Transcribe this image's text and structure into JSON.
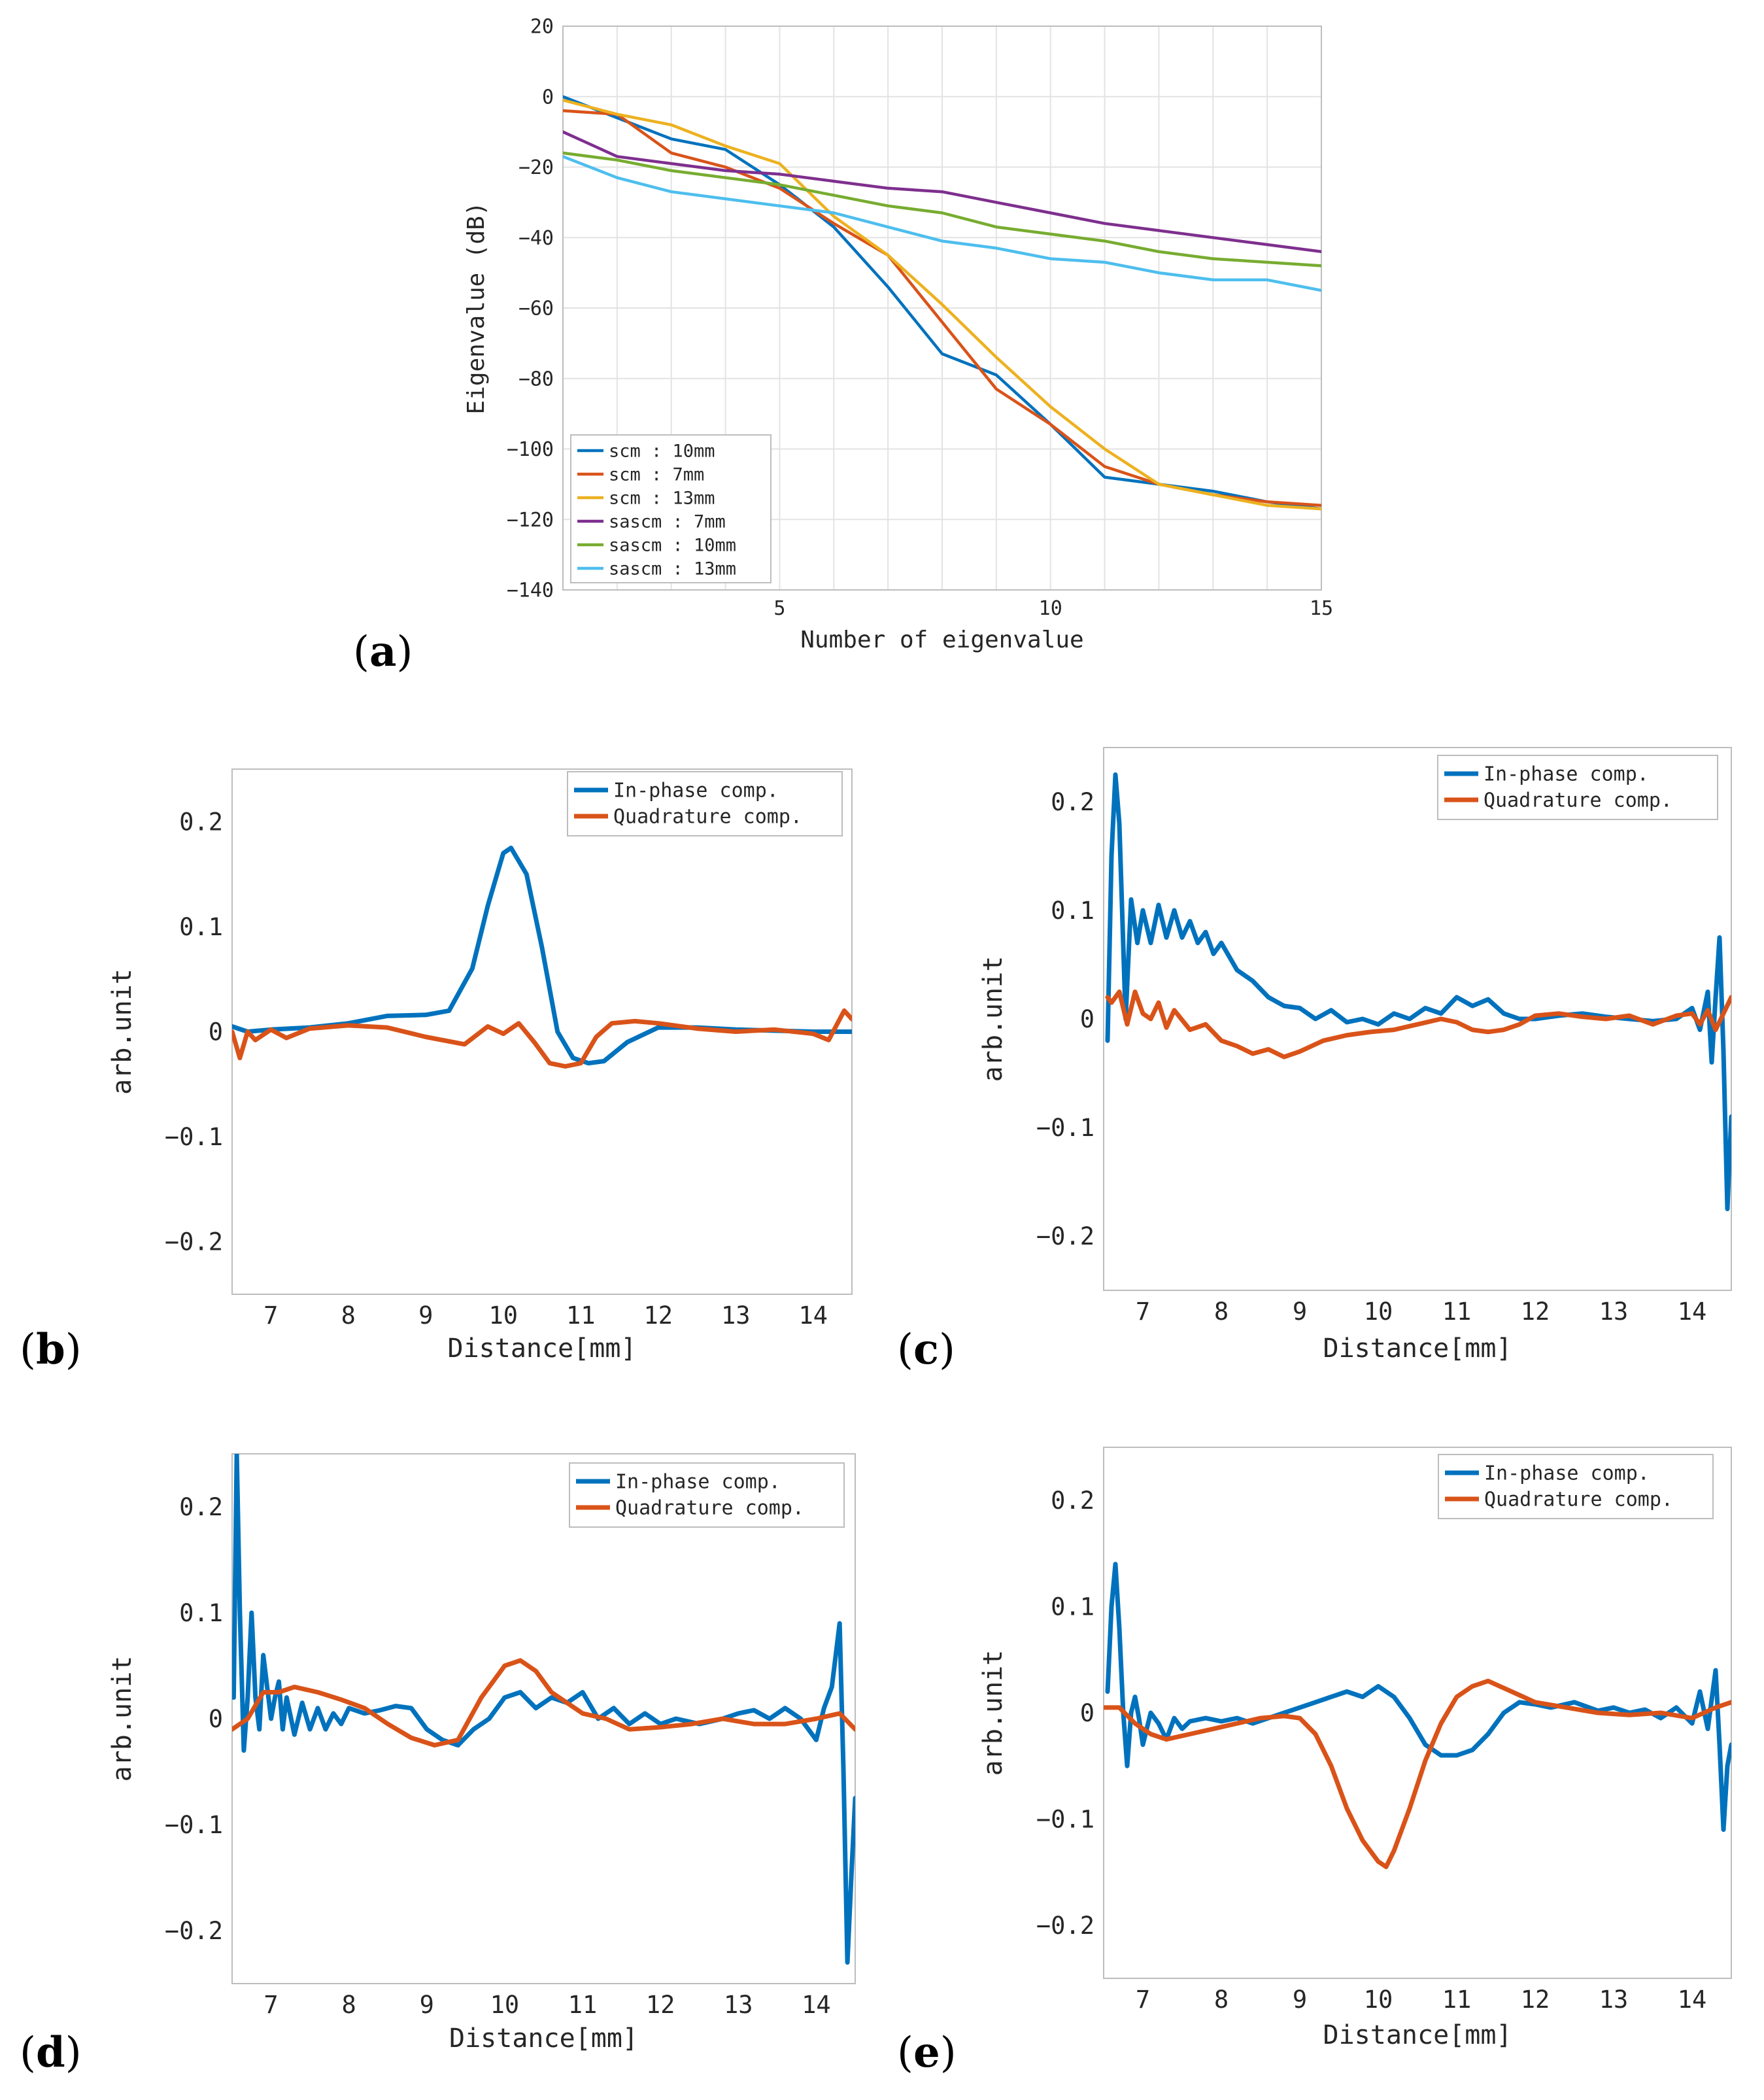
{
  "chart_data": [
    {
      "panel": "a",
      "type": "line",
      "title": "",
      "xlabel": "Number of eigenvalue",
      "ylabel": "Eigenvalue (dB)",
      "xlim": [
        1,
        15
      ],
      "ylim": [
        -140,
        20
      ],
      "xticks": [
        5,
        10,
        15
      ],
      "yticks": [
        20,
        0,
        -20,
        -40,
        -60,
        -80,
        -100,
        -120,
        -140
      ],
      "grid": true,
      "legend_location": "bottom-left",
      "x": [
        1,
        2,
        3,
        4,
        5,
        6,
        7,
        8,
        9,
        10,
        11,
        12,
        13,
        14,
        15
      ],
      "series": [
        {
          "name": "scm : 10mm",
          "color": "#0072BD",
          "values": [
            0,
            -6,
            -12,
            -15,
            -25,
            -37,
            -54,
            -73,
            -79,
            -93,
            -108,
            -110,
            -112,
            -115,
            -117
          ]
        },
        {
          "name": "scm : 7mm",
          "color": "#D95319",
          "values": [
            -4,
            -5,
            -16,
            -20,
            -26,
            -36,
            -45,
            -64,
            -83,
            -93,
            -105,
            -110,
            -113,
            -115,
            -116
          ]
        },
        {
          "name": "scm : 13mm",
          "color": "#EDB120",
          "values": [
            -1,
            -5,
            -8,
            -14,
            -19,
            -34,
            -45,
            -59,
            -74,
            -88,
            -100,
            -110,
            -113,
            -116,
            -117
          ]
        },
        {
          "name": "sascm : 7mm",
          "color": "#7E2F8E",
          "values": [
            -10,
            -17,
            -19,
            -21,
            -22,
            -24,
            -26,
            -27,
            -30,
            -33,
            -36,
            -38,
            -40,
            -42,
            -44
          ]
        },
        {
          "name": "sascm : 10mm",
          "color": "#77AC30",
          "values": [
            -16,
            -18,
            -21,
            -23,
            -25,
            -28,
            -31,
            -33,
            -37,
            -39,
            -41,
            -44,
            -46,
            -47,
            -48
          ]
        },
        {
          "name": "sascm : 13mm",
          "color": "#4DBEEE",
          "values": [
            -17,
            -23,
            -27,
            -29,
            -31,
            -33,
            -37,
            -41,
            -43,
            -46,
            -47,
            -50,
            -52,
            -52,
            -55
          ]
        }
      ]
    },
    {
      "panel": "b",
      "type": "line",
      "xlabel": "Distance[mm]",
      "ylabel": "arb.unit",
      "xlim": [
        6.5,
        14.5
      ],
      "ylim": [
        -0.25,
        0.25
      ],
      "xticks": [
        7,
        8,
        9,
        10,
        11,
        12,
        13,
        14
      ],
      "yticks": [
        0.2,
        0.1,
        0,
        -0.1,
        -0.2
      ],
      "ytick_labels": [
        "0.2",
        "0.1",
        "0",
        "-0.1",
        "-0.2"
      ],
      "legend_location": "top-right",
      "series": [
        {
          "name": "In-phase comp.",
          "color": "#0072BD",
          "x": [
            6.5,
            6.7,
            7.0,
            7.5,
            8.0,
            8.5,
            9.0,
            9.3,
            9.6,
            9.8,
            10.0,
            10.1,
            10.3,
            10.5,
            10.7,
            10.9,
            11.1,
            11.3,
            11.6,
            12.0,
            12.5,
            13.0,
            13.5,
            14.0,
            14.5
          ],
          "values": [
            0.005,
            0.0,
            0.002,
            0.004,
            0.008,
            0.015,
            0.016,
            0.02,
            0.06,
            0.12,
            0.17,
            0.175,
            0.15,
            0.08,
            0.0,
            -0.025,
            -0.03,
            -0.028,
            -0.01,
            0.004,
            0.004,
            0.002,
            0.001,
            0.0,
            0.0
          ]
        },
        {
          "name": "Quadrature comp.",
          "color": "#D95319",
          "x": [
            6.5,
            6.6,
            6.7,
            6.8,
            7.0,
            7.2,
            7.5,
            8.0,
            8.5,
            9.0,
            9.5,
            9.8,
            10.0,
            10.2,
            10.4,
            10.6,
            10.8,
            11.0,
            11.2,
            11.4,
            11.7,
            12.0,
            12.5,
            13.0,
            13.5,
            14.0,
            14.2,
            14.4,
            14.5
          ],
          "values": [
            0.0,
            -0.025,
            0.0,
            -0.008,
            0.002,
            -0.006,
            0.003,
            0.006,
            0.004,
            -0.005,
            -0.012,
            0.005,
            -0.002,
            0.008,
            -0.01,
            -0.03,
            -0.033,
            -0.03,
            -0.005,
            0.008,
            0.01,
            0.008,
            0.003,
            0.0,
            0.002,
            -0.002,
            -0.008,
            0.02,
            0.012
          ]
        }
      ]
    },
    {
      "panel": "c",
      "type": "line",
      "xlabel": "Distance[mm]",
      "ylabel": "arb.unit",
      "xlim": [
        6.5,
        14.5
      ],
      "ylim": [
        -0.25,
        0.25
      ],
      "xticks": [
        7,
        8,
        9,
        10,
        11,
        12,
        13,
        14
      ],
      "yticks": [
        0.2,
        0.1,
        0,
        -0.1,
        -0.2
      ],
      "ytick_labels": [
        "0.2",
        "0.1",
        "0",
        "-0.1",
        "-0.2"
      ],
      "legend_location": "top-right",
      "series": [
        {
          "name": "In-phase comp.",
          "color": "#0072BD",
          "x": [
            6.55,
            6.6,
            6.65,
            6.7,
            6.78,
            6.85,
            6.93,
            7.0,
            7.1,
            7.2,
            7.3,
            7.4,
            7.5,
            7.6,
            7.7,
            7.8,
            7.9,
            8.0,
            8.2,
            8.4,
            8.6,
            8.8,
            9.0,
            9.2,
            9.4,
            9.6,
            9.8,
            10.0,
            10.2,
            10.4,
            10.6,
            10.8,
            11.0,
            11.2,
            11.4,
            11.6,
            11.8,
            12.0,
            12.3,
            12.6,
            12.9,
            13.2,
            13.5,
            13.8,
            14.0,
            14.1,
            14.2,
            14.25,
            14.3,
            14.35,
            14.4,
            14.45,
            14.5
          ],
          "values": [
            -0.02,
            0.15,
            0.225,
            0.18,
            0.0,
            0.11,
            0.07,
            0.1,
            0.07,
            0.105,
            0.075,
            0.1,
            0.075,
            0.09,
            0.07,
            0.08,
            0.06,
            0.07,
            0.045,
            0.035,
            0.02,
            0.012,
            0.01,
            0.0,
            0.008,
            -0.003,
            0.0,
            -0.005,
            0.005,
            0.0,
            0.01,
            0.005,
            0.02,
            0.012,
            0.018,
            0.005,
            0.0,
            0.0,
            0.003,
            0.005,
            0.002,
            0.0,
            -0.002,
            0.0,
            0.01,
            -0.01,
            0.025,
            -0.04,
            0.02,
            0.075,
            -0.03,
            -0.175,
            -0.09
          ]
        },
        {
          "name": "Quadrature comp.",
          "color": "#D95319",
          "x": [
            6.55,
            6.6,
            6.7,
            6.8,
            6.9,
            7.0,
            7.1,
            7.2,
            7.3,
            7.4,
            7.6,
            7.8,
            8.0,
            8.2,
            8.4,
            8.6,
            8.8,
            9.0,
            9.3,
            9.6,
            9.9,
            10.2,
            10.5,
            10.8,
            11.0,
            11.2,
            11.4,
            11.6,
            11.8,
            12.0,
            12.3,
            12.6,
            12.9,
            13.2,
            13.5,
            13.8,
            14.0,
            14.1,
            14.2,
            14.3,
            14.4,
            14.5
          ],
          "values": [
            0.02,
            0.015,
            0.025,
            -0.005,
            0.025,
            0.005,
            0.0,
            0.015,
            -0.008,
            0.008,
            -0.01,
            -0.005,
            -0.02,
            -0.025,
            -0.032,
            -0.028,
            -0.035,
            -0.03,
            -0.02,
            -0.015,
            -0.012,
            -0.01,
            -0.005,
            0.0,
            -0.003,
            -0.01,
            -0.012,
            -0.01,
            -0.005,
            0.003,
            0.005,
            0.002,
            0.0,
            0.003,
            -0.005,
            0.003,
            0.005,
            -0.005,
            0.008,
            -0.01,
            0.005,
            0.02
          ]
        }
      ]
    },
    {
      "panel": "d",
      "type": "line",
      "xlabel": "Distance[mm]",
      "ylabel": "arb.unit",
      "xlim": [
        6.5,
        14.5
      ],
      "ylim": [
        -0.25,
        0.25
      ],
      "xticks": [
        7,
        8,
        9,
        10,
        11,
        12,
        13,
        14
      ],
      "yticks": [
        0.2,
        0.1,
        0,
        -0.1,
        -0.2
      ],
      "ytick_labels": [
        "0.2",
        "0.1",
        "0",
        "-0.1",
        "-0.2"
      ],
      "legend_location": "top-right",
      "series": [
        {
          "name": "In-phase comp.",
          "color": "#0072BD",
          "x": [
            6.52,
            6.56,
            6.6,
            6.65,
            6.7,
            6.75,
            6.8,
            6.85,
            6.9,
            6.95,
            7.0,
            7.05,
            7.1,
            7.15,
            7.2,
            7.3,
            7.4,
            7.5,
            7.6,
            7.7,
            7.8,
            7.9,
            8.0,
            8.2,
            8.4,
            8.6,
            8.8,
            9.0,
            9.2,
            9.4,
            9.6,
            9.8,
            10.0,
            10.2,
            10.4,
            10.6,
            10.8,
            11.0,
            11.2,
            11.4,
            11.6,
            11.8,
            12.0,
            12.2,
            12.5,
            12.8,
            13.0,
            13.2,
            13.4,
            13.6,
            13.8,
            14.0,
            14.1,
            14.2,
            14.3,
            14.35,
            14.4,
            14.45,
            14.5
          ],
          "values": [
            0.02,
            0.25,
            0.1,
            -0.03,
            0.02,
            0.1,
            0.02,
            -0.01,
            0.06,
            0.03,
            0.0,
            0.02,
            0.035,
            -0.01,
            0.02,
            -0.015,
            0.015,
            -0.01,
            0.01,
            -0.01,
            0.005,
            -0.005,
            0.01,
            0.005,
            0.008,
            0.012,
            0.01,
            -0.01,
            -0.02,
            -0.025,
            -0.01,
            0.0,
            0.02,
            0.025,
            0.01,
            0.02,
            0.015,
            0.025,
            0.0,
            0.01,
            -0.005,
            0.005,
            -0.005,
            0.0,
            -0.005,
            0.0,
            0.005,
            0.008,
            0.0,
            0.01,
            0.0,
            -0.02,
            0.01,
            0.03,
            0.09,
            -0.05,
            -0.23,
            -0.15,
            -0.075
          ]
        },
        {
          "name": "Quadrature comp.",
          "color": "#D95319",
          "x": [
            6.5,
            6.7,
            6.9,
            7.1,
            7.3,
            7.6,
            7.9,
            8.2,
            8.5,
            8.8,
            9.1,
            9.4,
            9.7,
            10.0,
            10.2,
            10.4,
            10.6,
            10.8,
            11.0,
            11.3,
            11.6,
            12.0,
            12.4,
            12.8,
            13.2,
            13.6,
            14.0,
            14.3,
            14.5
          ],
          "values": [
            -0.01,
            0.0,
            0.025,
            0.025,
            0.03,
            0.025,
            0.018,
            0.01,
            -0.005,
            -0.018,
            -0.025,
            -0.02,
            0.02,
            0.05,
            0.055,
            0.045,
            0.025,
            0.015,
            0.005,
            0.0,
            -0.01,
            -0.008,
            -0.005,
            0.0,
            -0.005,
            -0.005,
            0.0,
            0.005,
            -0.01
          ]
        }
      ]
    },
    {
      "panel": "e",
      "type": "line",
      "xlabel": "Distance[mm]",
      "ylabel": "arb.unit",
      "xlim": [
        6.5,
        14.5
      ],
      "ylim": [
        -0.25,
        0.25
      ],
      "xticks": [
        7,
        8,
        9,
        10,
        11,
        12,
        13,
        14
      ],
      "yticks": [
        0.2,
        0.1,
        0,
        -0.1,
        -0.2
      ],
      "ytick_labels": [
        "0.2",
        "0.1",
        "0",
        "-0.1",
        "-0.2"
      ],
      "legend_location": "top-right",
      "series": [
        {
          "name": "In-phase comp.",
          "color": "#0072BD",
          "x": [
            6.55,
            6.6,
            6.65,
            6.7,
            6.75,
            6.8,
            6.85,
            6.9,
            6.95,
            7.0,
            7.1,
            7.2,
            7.3,
            7.4,
            7.5,
            7.6,
            7.8,
            8.0,
            8.2,
            8.4,
            8.6,
            8.8,
            9.0,
            9.2,
            9.4,
            9.6,
            9.8,
            10.0,
            10.2,
            10.4,
            10.6,
            10.8,
            11.0,
            11.2,
            11.4,
            11.6,
            11.8,
            12.0,
            12.2,
            12.5,
            12.8,
            13.0,
            13.2,
            13.4,
            13.6,
            13.8,
            14.0,
            14.1,
            14.2,
            14.3,
            14.35,
            14.4,
            14.45,
            14.5
          ],
          "values": [
            0.02,
            0.1,
            0.14,
            0.08,
            0.0,
            -0.05,
            0.0,
            0.015,
            -0.005,
            -0.03,
            0.0,
            -0.01,
            -0.025,
            -0.005,
            -0.015,
            -0.008,
            -0.005,
            -0.008,
            -0.005,
            -0.01,
            -0.005,
            0.0,
            0.005,
            0.01,
            0.015,
            0.02,
            0.015,
            0.025,
            0.015,
            -0.005,
            -0.03,
            -0.04,
            -0.04,
            -0.035,
            -0.02,
            0.0,
            0.01,
            0.008,
            0.005,
            0.01,
            0.002,
            0.005,
            0.0,
            0.003,
            -0.005,
            0.005,
            -0.01,
            0.02,
            -0.015,
            0.04,
            -0.03,
            -0.11,
            -0.05,
            -0.03
          ]
        },
        {
          "name": "Quadrature comp.",
          "color": "#D95319",
          "x": [
            6.5,
            6.7,
            6.9,
            7.1,
            7.3,
            7.6,
            7.9,
            8.2,
            8.5,
            8.8,
            9.0,
            9.2,
            9.4,
            9.6,
            9.8,
            10.0,
            10.1,
            10.2,
            10.4,
            10.6,
            10.8,
            11.0,
            11.2,
            11.4,
            11.7,
            12.0,
            12.4,
            12.8,
            13.2,
            13.6,
            14.0,
            14.3,
            14.5
          ],
          "values": [
            0.005,
            0.005,
            -0.01,
            -0.02,
            -0.025,
            -0.02,
            -0.015,
            -0.01,
            -0.005,
            -0.003,
            -0.005,
            -0.02,
            -0.05,
            -0.09,
            -0.12,
            -0.14,
            -0.145,
            -0.13,
            -0.09,
            -0.045,
            -0.01,
            0.015,
            0.025,
            0.03,
            0.02,
            0.01,
            0.005,
            0.0,
            -0.002,
            0.0,
            -0.005,
            0.005,
            0.01
          ]
        }
      ]
    }
  ],
  "panel_labels": {
    "a": "a",
    "b": "b",
    "c": "c",
    "d": "d",
    "e": "e"
  }
}
